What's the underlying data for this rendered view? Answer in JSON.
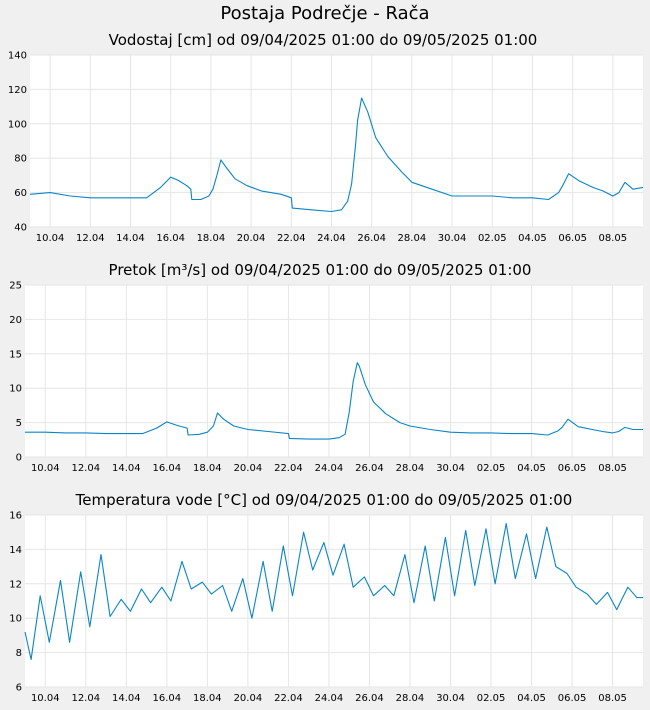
{
  "main_title": "Postaja Podrečje - Rača",
  "chart_data": [
    {
      "type": "line",
      "title": "Vodostaj [cm] od 09/04/2025 01:00 do 09/05/2025 01:00",
      "xlabel": "",
      "ylabel": "",
      "ylim": [
        40,
        140
      ],
      "yticks": [
        "40",
        "60",
        "80",
        "100",
        "120",
        "140"
      ],
      "xlim": [
        9.0,
        39.5
      ],
      "xticks": [
        {
          "x": 10,
          "label": "10.04"
        },
        {
          "x": 12,
          "label": "12.04"
        },
        {
          "x": 14,
          "label": "14.04"
        },
        {
          "x": 16,
          "label": "16.04"
        },
        {
          "x": 18,
          "label": "18.04"
        },
        {
          "x": 20,
          "label": "20.04"
        },
        {
          "x": 22,
          "label": "22.04"
        },
        {
          "x": 24,
          "label": "24.04"
        },
        {
          "x": 26,
          "label": "26.04"
        },
        {
          "x": 28,
          "label": "28.04"
        },
        {
          "x": 30,
          "label": "30.04"
        },
        {
          "x": 32,
          "label": "02.05"
        },
        {
          "x": 34,
          "label": "04.05"
        },
        {
          "x": 36,
          "label": "06.05"
        },
        {
          "x": 38,
          "label": "08.05"
        }
      ],
      "grid": true,
      "color": "#0a85c8",
      "series": [
        {
          "x": [
            9.0,
            10.0,
            11.0,
            12.0,
            13.0,
            14.0,
            14.8,
            15.5,
            16.0,
            16.4,
            16.8,
            17.0,
            17.05,
            17.5,
            17.9,
            18.1,
            18.3,
            18.5,
            18.8,
            19.2,
            19.8,
            20.5,
            21.5,
            22.0,
            22.05,
            23.0,
            24.0,
            24.5,
            24.8,
            25.0,
            25.2,
            25.3,
            25.5,
            25.8,
            26.2,
            26.8,
            27.5,
            28.0,
            29.0,
            30.0,
            31.0,
            32.0,
            33.0,
            34.0,
            34.8,
            35.3,
            35.5,
            35.8,
            36.3,
            37.0,
            37.5,
            38.0,
            38.3,
            38.6,
            39.0,
            39.5
          ],
          "y": [
            59,
            60,
            58,
            57,
            57,
            57,
            57,
            63,
            69,
            67,
            64,
            62,
            56,
            56,
            58,
            62,
            70,
            79,
            74,
            68,
            64,
            61,
            59,
            57,
            51,
            50,
            49,
            50,
            55,
            65,
            88,
            102,
            115,
            107,
            92,
            81,
            72,
            66,
            62,
            58,
            58,
            58,
            57,
            57,
            56,
            60,
            64,
            71,
            67,
            63,
            61,
            58,
            60,
            66,
            62,
            63
          ]
        }
      ]
    },
    {
      "type": "line",
      "title": "Pretok [m³/s] od 09/04/2025 01:00 do 09/05/2025 01:00",
      "xlabel": "",
      "ylabel": "",
      "ylim": [
        0,
        25
      ],
      "yticks": [
        "0",
        "5",
        "10",
        "15",
        "20",
        "25"
      ],
      "xlim": [
        9.0,
        39.5
      ],
      "xticks": [
        {
          "x": 10,
          "label": "10.04"
        },
        {
          "x": 12,
          "label": "12.04"
        },
        {
          "x": 14,
          "label": "14.04"
        },
        {
          "x": 16,
          "label": "16.04"
        },
        {
          "x": 18,
          "label": "18.04"
        },
        {
          "x": 20,
          "label": "20.04"
        },
        {
          "x": 22,
          "label": "22.04"
        },
        {
          "x": 24,
          "label": "24.04"
        },
        {
          "x": 26,
          "label": "26.04"
        },
        {
          "x": 28,
          "label": "28.04"
        },
        {
          "x": 30,
          "label": "30.04"
        },
        {
          "x": 32,
          "label": "02.05"
        },
        {
          "x": 34,
          "label": "04.05"
        },
        {
          "x": 36,
          "label": "06.05"
        },
        {
          "x": 38,
          "label": "08.05"
        }
      ],
      "grid": true,
      "color": "#0a85c8",
      "series": [
        {
          "x": [
            9.0,
            10.0,
            11.0,
            12.0,
            13.0,
            14.0,
            14.8,
            15.5,
            16.0,
            16.5,
            17.0,
            17.05,
            17.6,
            18.0,
            18.3,
            18.5,
            18.8,
            19.3,
            20.0,
            21.0,
            22.0,
            22.05,
            23.0,
            24.0,
            24.5,
            24.8,
            25.0,
            25.2,
            25.4,
            25.5,
            25.8,
            26.2,
            26.8,
            27.5,
            28.0,
            29.0,
            30.0,
            31.0,
            32.0,
            33.0,
            34.0,
            34.8,
            35.3,
            35.5,
            35.8,
            36.3,
            37.0,
            37.5,
            38.0,
            38.3,
            38.6,
            39.0,
            39.5
          ],
          "y": [
            3.6,
            3.6,
            3.5,
            3.5,
            3.4,
            3.4,
            3.4,
            4.2,
            5.1,
            4.6,
            4.2,
            3.2,
            3.3,
            3.6,
            4.5,
            6.4,
            5.5,
            4.5,
            4.0,
            3.7,
            3.4,
            2.7,
            2.6,
            2.6,
            2.8,
            3.3,
            6.5,
            11.0,
            13.7,
            13.2,
            10.5,
            8.0,
            6.3,
            5.0,
            4.5,
            4.0,
            3.6,
            3.5,
            3.5,
            3.4,
            3.4,
            3.2,
            3.8,
            4.3,
            5.5,
            4.4,
            4.0,
            3.7,
            3.5,
            3.7,
            4.3,
            4.0,
            4.0
          ]
        }
      ]
    },
    {
      "type": "line",
      "title": "Temperatura vode [°C] od 09/04/2025 01:00 do 09/05/2025 01:00",
      "xlabel": "",
      "ylabel": "",
      "ylim": [
        6,
        16
      ],
      "yticks": [
        "6",
        "8",
        "10",
        "12",
        "14",
        "16"
      ],
      "xlim": [
        9.0,
        39.5
      ],
      "xticks": [
        {
          "x": 10,
          "label": "10.04"
        },
        {
          "x": 12,
          "label": "12.04"
        },
        {
          "x": 14,
          "label": "14.04"
        },
        {
          "x": 16,
          "label": "16.04"
        },
        {
          "x": 18,
          "label": "18.04"
        },
        {
          "x": 20,
          "label": "20.04"
        },
        {
          "x": 22,
          "label": "22.04"
        },
        {
          "x": 24,
          "label": "24.04"
        },
        {
          "x": 26,
          "label": "26.04"
        },
        {
          "x": 28,
          "label": "28.04"
        },
        {
          "x": 30,
          "label": "30.04"
        },
        {
          "x": 32,
          "label": "02.05"
        },
        {
          "x": 34,
          "label": "04.05"
        },
        {
          "x": 36,
          "label": "06.05"
        },
        {
          "x": 38,
          "label": "08.05"
        }
      ],
      "grid": true,
      "color": "#0a85c8",
      "series": [
        {
          "x": [
            9.0,
            9.3,
            9.75,
            10.2,
            10.75,
            11.2,
            11.75,
            12.2,
            12.75,
            13.2,
            13.75,
            14.2,
            14.75,
            15.2,
            15.75,
            16.2,
            16.75,
            17.2,
            17.75,
            18.2,
            18.75,
            19.2,
            19.75,
            20.2,
            20.75,
            21.2,
            21.75,
            22.2,
            22.75,
            23.2,
            23.75,
            24.2,
            24.75,
            25.2,
            25.75,
            26.2,
            26.75,
            27.2,
            27.75,
            28.2,
            28.75,
            29.2,
            29.75,
            30.2,
            30.75,
            31.2,
            31.75,
            32.2,
            32.75,
            33.2,
            33.75,
            34.2,
            34.75,
            35.2,
            35.75,
            36.2,
            36.75,
            37.2,
            37.75,
            38.2,
            38.75,
            39.2,
            39.5
          ],
          "y": [
            9.2,
            7.6,
            11.3,
            8.6,
            12.2,
            8.6,
            12.7,
            9.5,
            13.7,
            10.1,
            11.1,
            10.4,
            11.7,
            10.9,
            11.8,
            11.0,
            13.3,
            11.7,
            12.1,
            11.4,
            11.9,
            10.4,
            12.3,
            10.0,
            13.3,
            10.4,
            14.2,
            11.3,
            15.0,
            12.8,
            14.4,
            12.5,
            14.3,
            11.8,
            12.4,
            11.3,
            11.9,
            11.3,
            13.7,
            10.9,
            14.2,
            11.0,
            14.7,
            11.3,
            15.1,
            11.9,
            15.2,
            12.0,
            15.5,
            12.3,
            14.9,
            12.3,
            15.3,
            13.0,
            12.6,
            11.8,
            11.4,
            10.8,
            11.5,
            10.5,
            11.8,
            11.2,
            11.2
          ]
        }
      ]
    }
  ]
}
